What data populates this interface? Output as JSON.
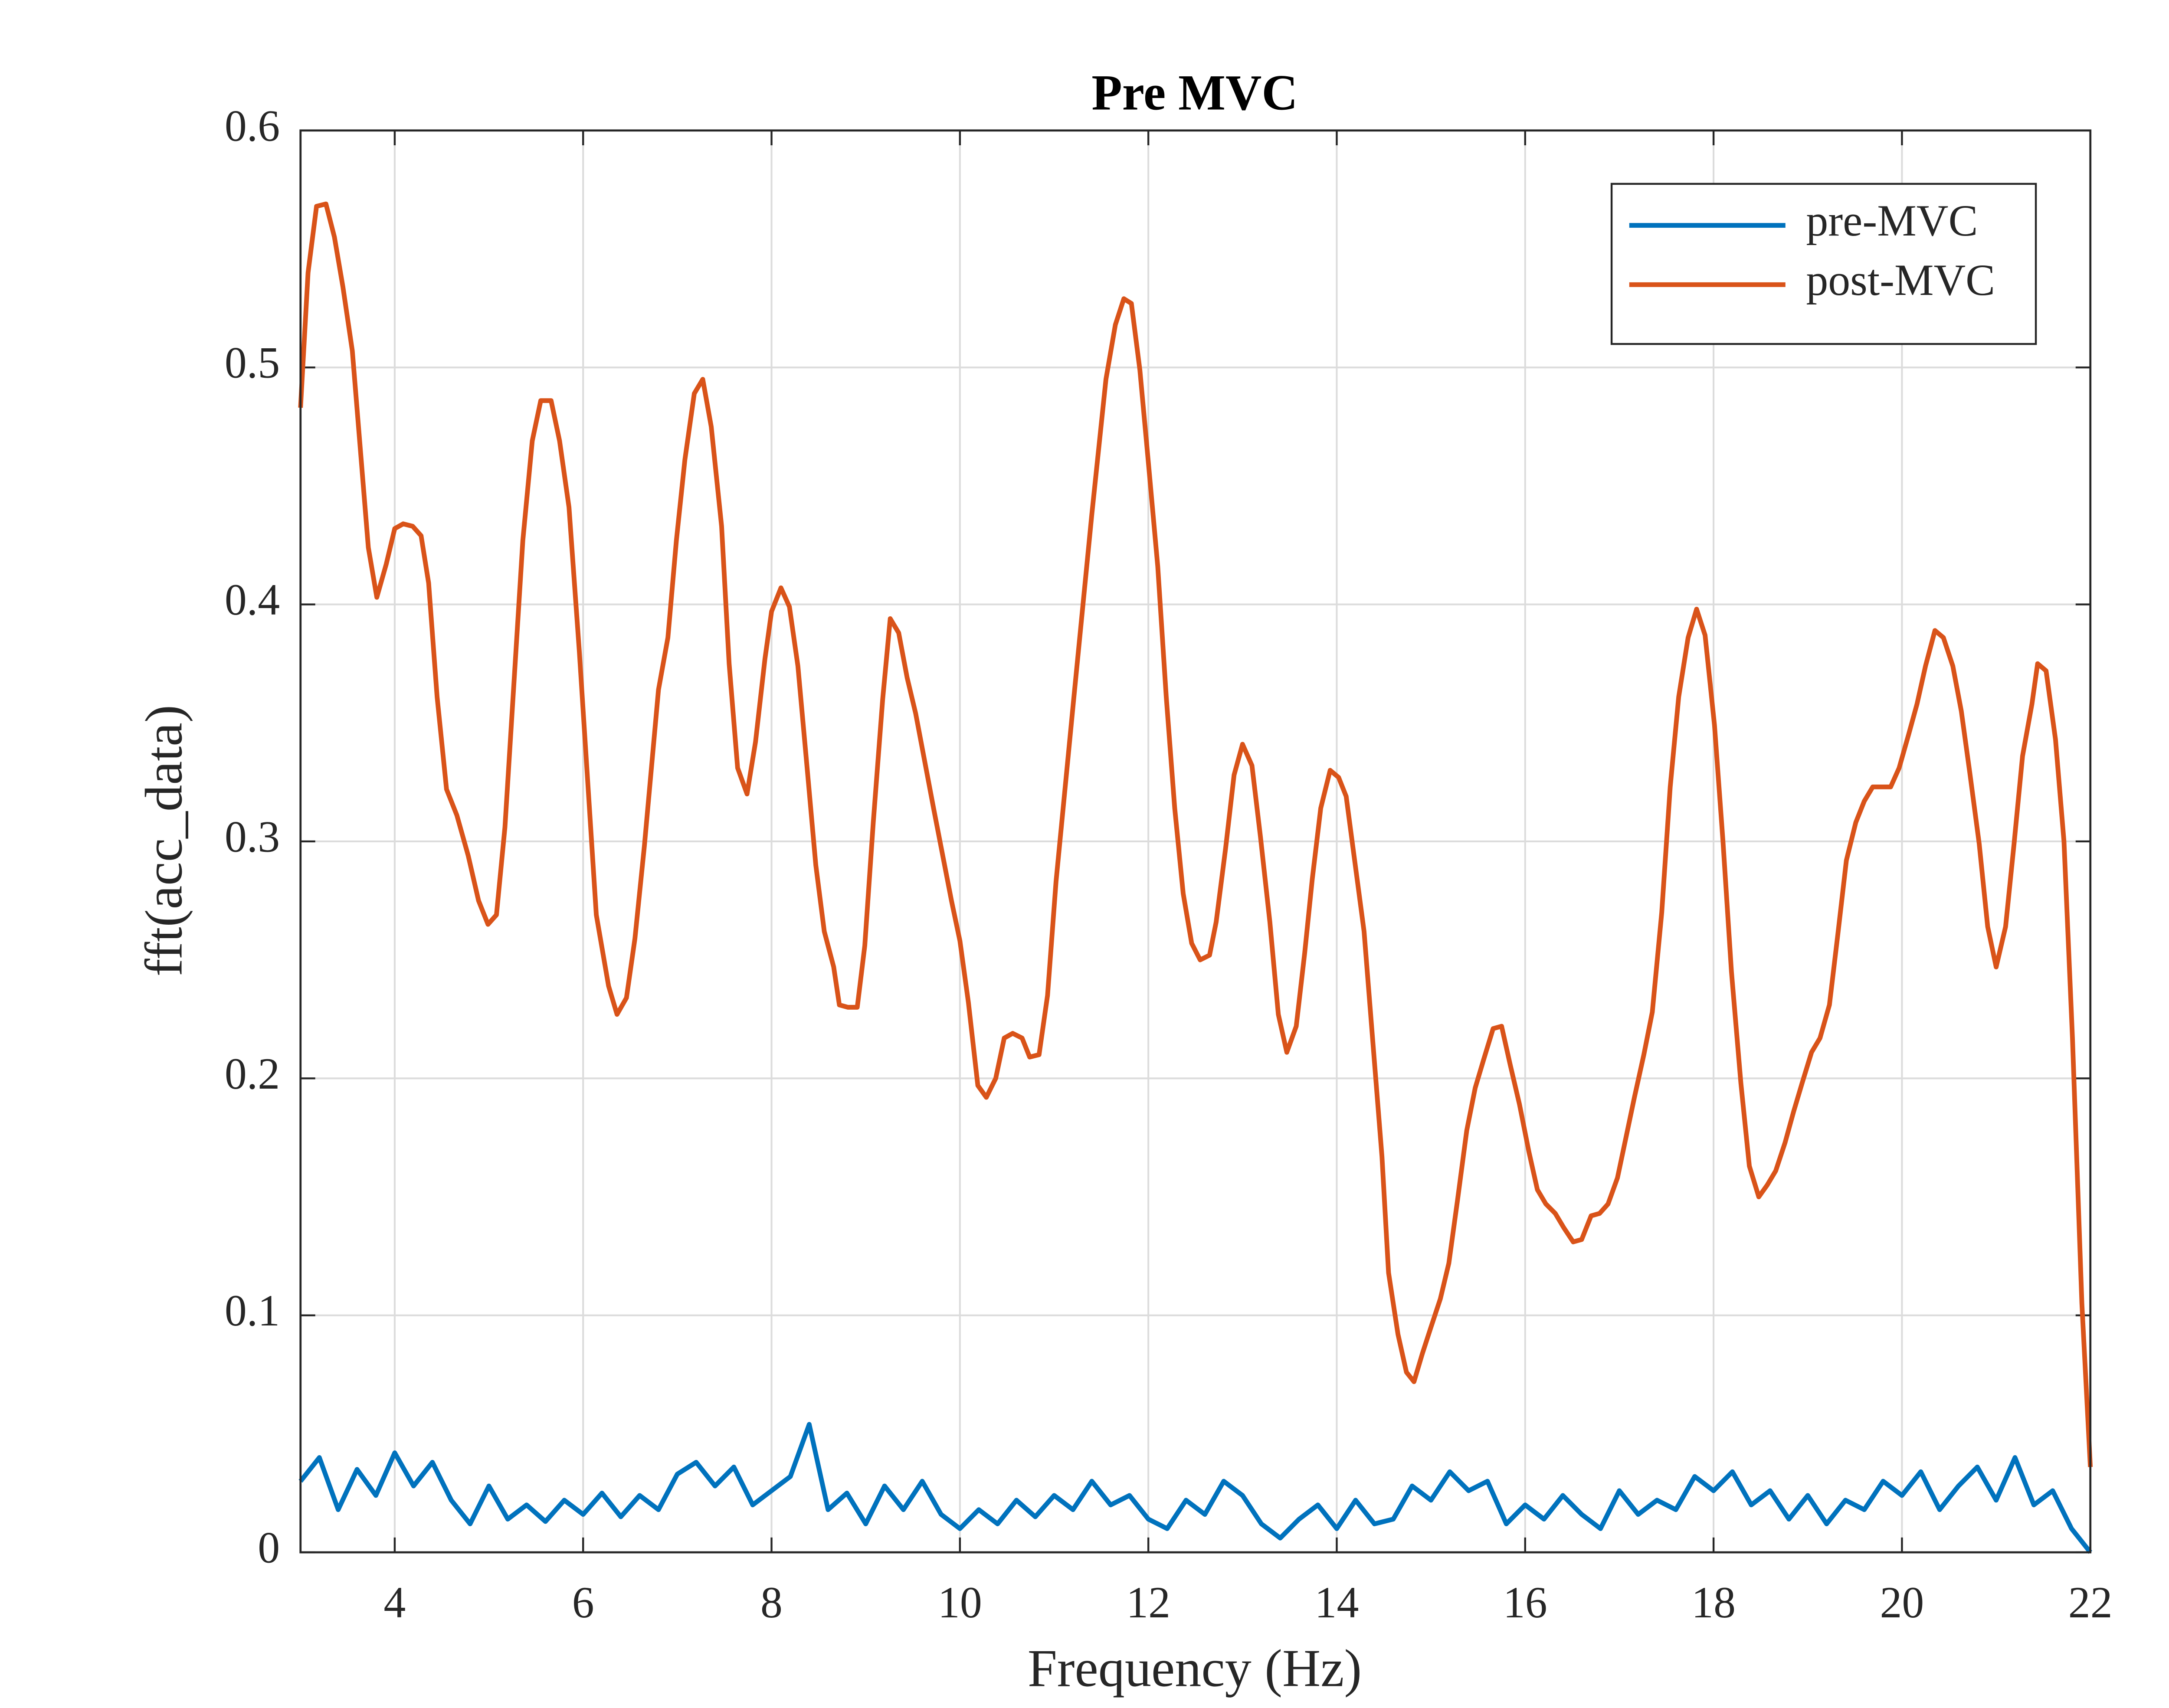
{
  "chart_data": {
    "type": "line",
    "title": "Pre MVC",
    "x_label": "Frequency (Hz)",
    "y_label": "fft(acc_data)",
    "xlim": [
      3,
      22
    ],
    "ylim": [
      0,
      0.6
    ],
    "xticks": [
      4,
      6,
      8,
      10,
      12,
      14,
      16,
      18,
      20,
      22
    ],
    "yticks": [
      0,
      0.1,
      0.2,
      0.3,
      0.4,
      0.5,
      0.6
    ],
    "grid": true,
    "legend": "northeast",
    "series": [
      {
        "name": "pre-MVC",
        "color": "#0072BD",
        "x": [
          3.0,
          3.2,
          3.4,
          3.6,
          3.8,
          4.0,
          4.2,
          4.4,
          4.6,
          4.8,
          5.0,
          5.2,
          5.4,
          5.6,
          5.8,
          6.0,
          6.2,
          6.4,
          6.6,
          6.8,
          7.0,
          7.2,
          7.4,
          7.6,
          7.8,
          8.0,
          8.2,
          8.4,
          8.6,
          8.8,
          9.0,
          9.2,
          9.4,
          9.6,
          9.8,
          10.0,
          10.2,
          10.4,
          10.6,
          10.8,
          11.0,
          11.2,
          11.4,
          11.6,
          11.8,
          12.0,
          12.2,
          12.4,
          12.6,
          12.8,
          13.0,
          13.2,
          13.4,
          13.6,
          13.8,
          14.0,
          14.2,
          14.4,
          14.6,
          14.8,
          15.0,
          15.2,
          15.4,
          15.6,
          15.8,
          16.0,
          16.2,
          16.4,
          16.6,
          16.8,
          17.0,
          17.2,
          17.4,
          17.6,
          17.8,
          18.0,
          18.2,
          18.4,
          18.6,
          18.8,
          19.0,
          19.2,
          19.4,
          19.6,
          19.8,
          20.0,
          20.2,
          20.4,
          20.6,
          20.8,
          21.0,
          21.2,
          21.4,
          21.6,
          21.8,
          22.0
        ],
        "values": [
          0.03,
          0.04,
          0.018,
          0.035,
          0.024,
          0.042,
          0.028,
          0.038,
          0.022,
          0.012,
          0.028,
          0.014,
          0.02,
          0.013,
          0.022,
          0.016,
          0.025,
          0.015,
          0.024,
          0.018,
          0.033,
          0.038,
          0.028,
          0.036,
          0.02,
          0.026,
          0.032,
          0.054,
          0.018,
          0.025,
          0.012,
          0.028,
          0.018,
          0.03,
          0.016,
          0.01,
          0.018,
          0.012,
          0.022,
          0.015,
          0.024,
          0.018,
          0.03,
          0.02,
          0.024,
          0.014,
          0.01,
          0.022,
          0.016,
          0.03,
          0.024,
          0.012,
          0.006,
          0.014,
          0.02,
          0.01,
          0.022,
          0.012,
          0.014,
          0.028,
          0.022,
          0.034,
          0.026,
          0.03,
          0.012,
          0.02,
          0.014,
          0.024,
          0.016,
          0.01,
          0.026,
          0.016,
          0.022,
          0.018,
          0.032,
          0.026,
          0.034,
          0.02,
          0.026,
          0.014,
          0.024,
          0.012,
          0.022,
          0.018,
          0.03,
          0.024,
          0.034,
          0.018,
          0.028,
          0.036,
          0.022,
          0.04,
          0.02,
          0.026,
          0.01,
          0.0
        ]
      },
      {
        "name": "post-MVC",
        "color": "#D95319",
        "x": [
          3.0,
          3.08,
          3.17,
          3.27,
          3.36,
          3.45,
          3.55,
          3.72,
          3.81,
          3.91,
          4.0,
          4.09,
          4.19,
          4.28,
          4.36,
          4.45,
          4.55,
          4.66,
          4.78,
          4.89,
          4.99,
          5.08,
          5.17,
          5.36,
          5.46,
          5.55,
          5.66,
          5.75,
          5.85,
          5.96,
          6.14,
          6.27,
          6.36,
          6.46,
          6.55,
          6.65,
          6.8,
          6.9,
          6.99,
          7.08,
          7.18,
          7.27,
          7.36,
          7.47,
          7.55,
          7.64,
          7.74,
          7.83,
          7.93,
          8.0,
          8.1,
          8.19,
          8.28,
          8.38,
          8.47,
          8.56,
          8.66,
          8.72,
          8.81,
          8.91,
          8.99,
          9.08,
          9.18,
          9.26,
          9.35,
          9.44,
          9.53,
          9.72,
          9.91,
          10.0,
          10.09,
          10.19,
          10.28,
          10.38,
          10.47,
          10.56,
          10.66,
          10.74,
          10.84,
          10.93,
          11.02,
          11.21,
          11.4,
          11.55,
          11.65,
          11.74,
          11.82,
          11.91,
          12.0,
          12.1,
          12.19,
          12.28,
          12.37,
          12.46,
          12.55,
          12.65,
          12.72,
          12.82,
          12.91,
          13.0,
          13.1,
          13.19,
          13.29,
          13.38,
          13.47,
          13.57,
          13.66,
          13.74,
          13.83,
          13.93,
          14.02,
          14.1,
          14.19,
          14.29,
          14.38,
          14.48,
          14.55,
          14.65,
          14.74,
          14.82,
          14.91,
          15.0,
          15.1,
          15.19,
          15.28,
          15.38,
          15.47,
          15.56,
          15.66,
          15.75,
          15.84,
          15.94,
          16.04,
          16.13,
          16.22,
          16.32,
          16.41,
          16.51,
          16.6,
          16.7,
          16.79,
          16.88,
          16.98,
          17.07,
          17.16,
          17.26,
          17.35,
          17.45,
          17.54,
          17.63,
          17.73,
          17.82,
          17.91,
          18.01,
          18.1,
          18.19,
          18.29,
          18.38,
          18.48,
          18.57,
          18.66,
          18.76,
          18.85,
          18.94,
          19.04,
          19.13,
          19.23,
          19.32,
          19.41,
          19.51,
          19.6,
          19.69,
          19.79,
          19.88,
          19.97,
          20.07,
          20.16,
          20.25,
          20.35,
          20.44,
          20.54,
          20.63,
          20.72,
          20.82,
          20.91,
          21.0,
          21.1,
          21.19,
          21.28,
          21.38,
          21.44,
          21.53,
          21.63,
          21.72,
          21.81,
          21.91,
          22.0
        ],
        "values": [
          0.483,
          0.54,
          0.568,
          0.569,
          0.555,
          0.534,
          0.507,
          0.424,
          0.403,
          0.417,
          0.432,
          0.434,
          0.433,
          0.429,
          0.409,
          0.361,
          0.322,
          0.311,
          0.294,
          0.275,
          0.265,
          0.269,
          0.306,
          0.427,
          0.469,
          0.486,
          0.486,
          0.469,
          0.441,
          0.38,
          0.269,
          0.239,
          0.227,
          0.234,
          0.259,
          0.298,
          0.364,
          0.386,
          0.427,
          0.461,
          0.489,
          0.495,
          0.475,
          0.433,
          0.375,
          0.331,
          0.32,
          0.342,
          0.377,
          0.397,
          0.407,
          0.399,
          0.374,
          0.33,
          0.29,
          0.262,
          0.247,
          0.231,
          0.23,
          0.23,
          0.256,
          0.308,
          0.36,
          0.394,
          0.388,
          0.369,
          0.354,
          0.314,
          0.275,
          0.258,
          0.232,
          0.197,
          0.192,
          0.2,
          0.217,
          0.219,
          0.217,
          0.209,
          0.21,
          0.235,
          0.283,
          0.361,
          0.438,
          0.495,
          0.518,
          0.529,
          0.527,
          0.499,
          0.46,
          0.416,
          0.361,
          0.314,
          0.278,
          0.257,
          0.25,
          0.252,
          0.266,
          0.297,
          0.328,
          0.341,
          0.332,
          0.302,
          0.266,
          0.227,
          0.211,
          0.222,
          0.253,
          0.284,
          0.314,
          0.33,
          0.327,
          0.319,
          0.292,
          0.262,
          0.217,
          0.167,
          0.118,
          0.092,
          0.076,
          0.072,
          0.084,
          0.095,
          0.107,
          0.122,
          0.148,
          0.178,
          0.196,
          0.208,
          0.221,
          0.222,
          0.206,
          0.189,
          0.169,
          0.153,
          0.147,
          0.143,
          0.137,
          0.131,
          0.132,
          0.142,
          0.143,
          0.147,
          0.158,
          0.175,
          0.192,
          0.21,
          0.228,
          0.27,
          0.323,
          0.361,
          0.386,
          0.398,
          0.387,
          0.349,
          0.3,
          0.245,
          0.198,
          0.163,
          0.15,
          0.155,
          0.161,
          0.173,
          0.186,
          0.198,
          0.211,
          0.217,
          0.231,
          0.261,
          0.292,
          0.308,
          0.317,
          0.323,
          0.323,
          0.323,
          0.331,
          0.345,
          0.358,
          0.374,
          0.389,
          0.386,
          0.374,
          0.355,
          0.329,
          0.299,
          0.264,
          0.247,
          0.264,
          0.299,
          0.336,
          0.358,
          0.375,
          0.372,
          0.343,
          0.3,
          0.217,
          0.105,
          0.036
        ]
      }
    ]
  }
}
